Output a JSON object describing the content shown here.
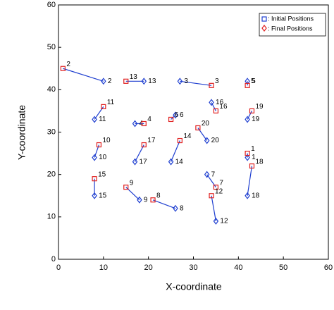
{
  "chart_data": {
    "type": "scatter",
    "xlabel": "X-coordinate",
    "ylabel": "Y-coordinate",
    "xlim": [
      0,
      60
    ],
    "ylim": [
      0,
      60
    ],
    "xticks": [
      0,
      10,
      20,
      30,
      40,
      50,
      60
    ],
    "yticks": [
      0,
      10,
      20,
      30,
      40,
      50,
      60
    ],
    "labels": [
      "1",
      "2",
      "3",
      "4",
      "5",
      "6",
      "7",
      "8",
      "9",
      "10",
      "11",
      "12",
      "13",
      "14",
      "15",
      "16",
      "17",
      "18",
      "19",
      "20"
    ],
    "series": [
      {
        "name": ": Initial Positions",
        "color": "#1f3fd0",
        "x": [
          42,
          10,
          27,
          17,
          42,
          26,
          33,
          26,
          18,
          8,
          8,
          35,
          19,
          25,
          8,
          34,
          17,
          42,
          42,
          33
        ],
        "y": [
          24,
          42,
          42,
          32,
          42,
          34,
          20,
          12,
          14,
          24,
          33,
          9,
          42,
          23,
          15,
          37,
          23,
          15,
          33,
          28
        ]
      },
      {
        "name": ": Final Positions",
        "color": "#e02020",
        "x": [
          42,
          1,
          34,
          19,
          42,
          25,
          35,
          21,
          15,
          9,
          10,
          34,
          15,
          27,
          8,
          35,
          19,
          43,
          43,
          31
        ],
        "y": [
          25,
          45,
          41,
          32,
          41,
          33,
          17,
          14,
          17,
          27,
          36,
          15,
          42,
          28,
          19,
          35,
          27,
          22,
          35,
          31
        ]
      }
    ]
  }
}
